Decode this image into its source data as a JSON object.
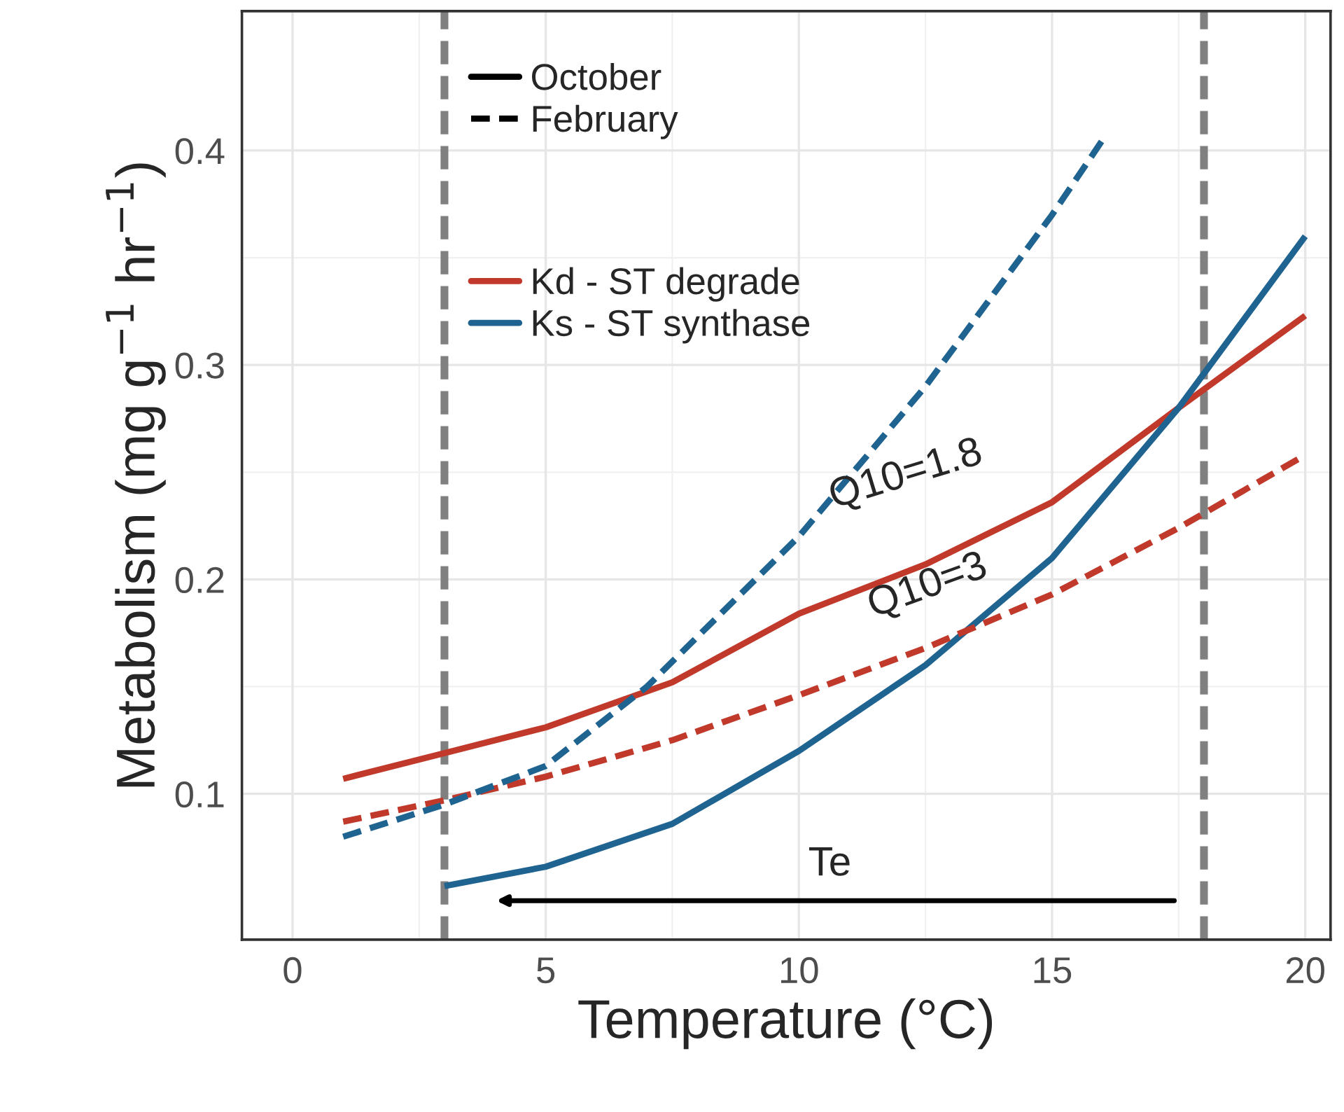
{
  "chart_data": {
    "type": "line",
    "xlabel": "Temperature (°C)",
    "ylabel": "Metabolism (mg g$^{−1}$ hr$^{−1}$)",
    "xlim": [
      -1,
      20.5
    ],
    "ylim": [
      0.032,
      0.465
    ],
    "xticks": [
      0,
      5,
      10,
      15,
      20
    ],
    "yticks": [
      0.1,
      0.2,
      0.3,
      0.4
    ],
    "grid": true,
    "legend": "top left",
    "series": [
      {
        "name": "Kd - ST degrade",
        "color": "#c0392b",
        "line_style": "solid",
        "x": [
          1,
          3,
          5,
          7.5,
          10,
          12.5,
          15,
          17.5,
          20
        ],
        "values": [
          0.107,
          0.119,
          0.131,
          0.152,
          0.184,
          0.207,
          0.236,
          0.28,
          0.323
        ]
      },
      {
        "name": "Ks - ST synthase",
        "color": "#1f6391",
        "line_style": "solid",
        "x": [
          3,
          5,
          7.5,
          10,
          12.5,
          15,
          17.5,
          20
        ],
        "values": [
          0.057,
          0.066,
          0.086,
          0.12,
          0.16,
          0.21,
          0.28,
          0.36
        ]
      },
      {
        "color": "#c0392b",
        "line_style": "dashed",
        "x": [
          1,
          3,
          5,
          7.5,
          10,
          12.5,
          15,
          17.5,
          20
        ],
        "values": [
          0.087,
          0.097,
          0.108,
          0.125,
          0.146,
          0.168,
          0.193,
          0.224,
          0.258
        ]
      },
      {
        "color": "#1f6391",
        "line_style": "dashed",
        "x": [
          1,
          3,
          5,
          7,
          10,
          12.5,
          15,
          16
        ],
        "values": [
          0.08,
          0.095,
          0.113,
          0.15,
          0.22,
          0.29,
          0.37,
          0.405
        ]
      }
    ],
    "ref_lines": [
      {
        "axis": "x",
        "value": 3,
        "color": "#808080",
        "line_style": "dashed"
      },
      {
        "axis": "x",
        "value": 18,
        "color": "#808080",
        "line_style": "dashed"
      }
    ],
    "annotations": [
      "October",
      "February",
      "Q10=1.8",
      "Q10=3",
      "Te"
    ]
  }
}
